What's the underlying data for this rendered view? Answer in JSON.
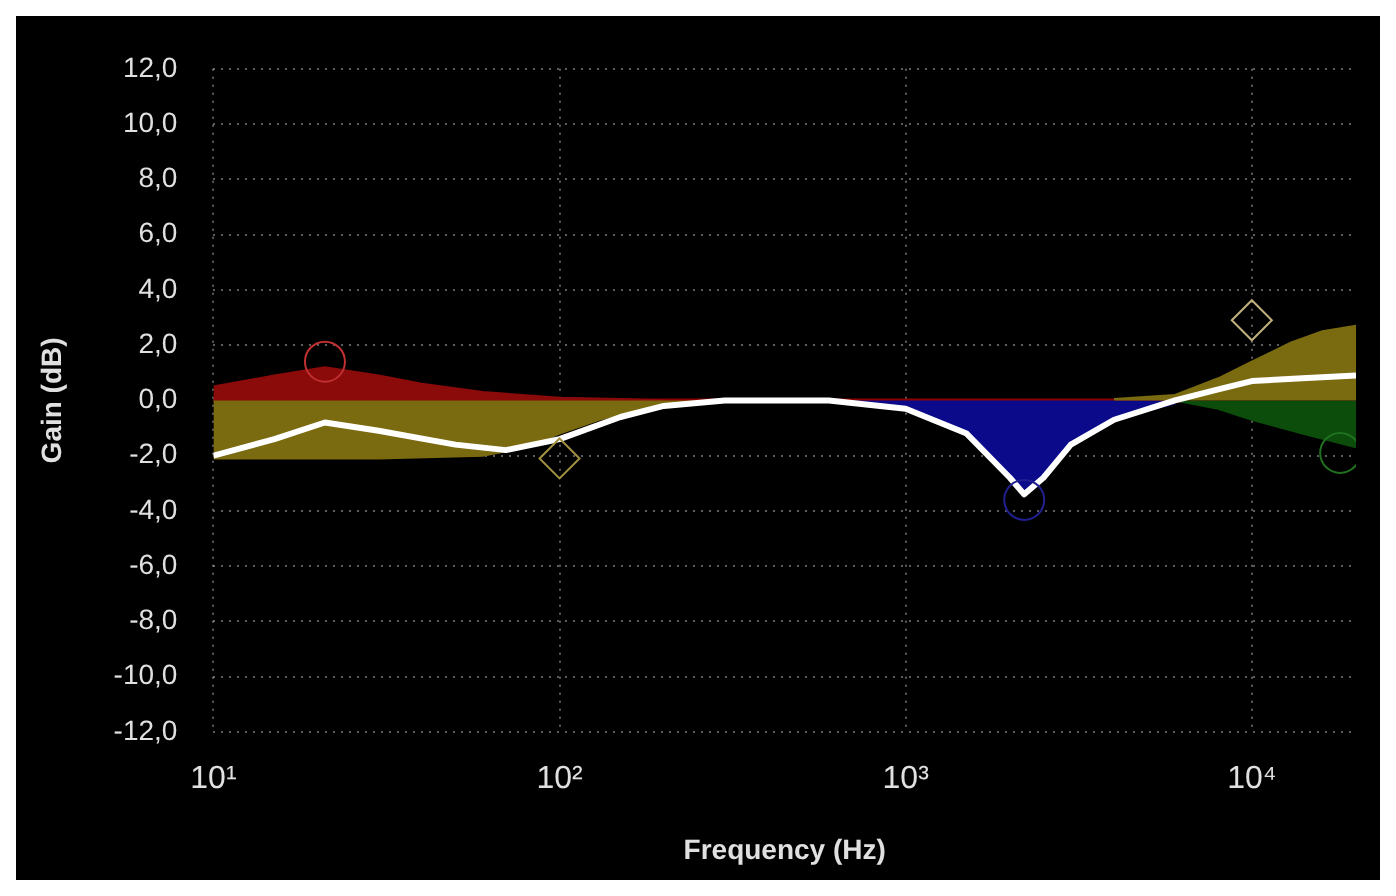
{
  "chart_data": {
    "type": "area",
    "xlabel": "Frequency (Hz)",
    "ylabel": "Gain (dB)",
    "log": "x",
    "grid": true,
    "xlim": [
      10,
      20000
    ],
    "xticks": [
      {
        "value": 10,
        "label": "10¹"
      },
      {
        "value": 100,
        "label": "10²"
      },
      {
        "value": 1000,
        "label": "10³"
      },
      {
        "value": 10000,
        "label": "10⁴"
      }
    ],
    "ylim": [
      -12,
      12
    ],
    "yticks": [
      {
        "value": -12,
        "label": "-12,0"
      },
      {
        "value": -10,
        "label": "-10,0"
      },
      {
        "value": -8,
        "label": "-8,0"
      },
      {
        "value": -6,
        "label": "-6,0"
      },
      {
        "value": -4,
        "label": "-4,0"
      },
      {
        "value": -2,
        "label": "-2,0"
      },
      {
        "value": 0,
        "label": "0,0"
      },
      {
        "value": 2,
        "label": "2,0"
      },
      {
        "value": 4,
        "label": "4,0"
      },
      {
        "value": 6,
        "label": "6,0"
      },
      {
        "value": 8,
        "label": "8,0"
      },
      {
        "value": 10,
        "label": "10,0"
      },
      {
        "value": 12,
        "label": "12,0"
      }
    ],
    "ref_lines": [
      {
        "axis": "y",
        "value": 0,
        "color": "#8b0000"
      }
    ],
    "series": [
      {
        "color": "#8b0a0a",
        "marker": "none",
        "x": [
          10,
          15,
          21,
          30,
          40,
          60,
          100,
          150,
          200
        ],
        "values": [
          0.5,
          0.9,
          1.2,
          0.9,
          0.6,
          0.3,
          0.1,
          0.05,
          0
        ]
      },
      {
        "color": "#7a6a10",
        "marker": "none",
        "x": [
          10,
          30,
          60,
          80,
          100,
          130,
          150,
          200,
          300
        ],
        "values": [
          -2.1,
          -2.1,
          -2.0,
          -1.7,
          -1.2,
          -0.7,
          -0.5,
          -0.1,
          0
        ]
      },
      {
        "color": "#0a0a8a",
        "marker": "none",
        "x": [
          600,
          1000,
          1500,
          2000,
          2200,
          2500,
          3000,
          4000,
          6000
        ],
        "values": [
          0,
          -0.3,
          -1.2,
          -2.8,
          -3.3,
          -2.8,
          -1.6,
          -0.7,
          -0.1
        ]
      },
      {
        "color": "#7a6a10",
        "marker": "none",
        "x": [
          4000,
          6000,
          8000,
          10000,
          13000,
          16000,
          20000
        ],
        "values": [
          0.05,
          0.2,
          0.8,
          1.4,
          2.1,
          2.5,
          2.7
        ]
      },
      {
        "color": "#0c4d0c",
        "marker": "none",
        "x": [
          6000,
          8000,
          10000,
          14000,
          20000
        ],
        "values": [
          0,
          -0.3,
          -0.7,
          -1.2,
          -1.7
        ]
      },
      {
        "type": "line",
        "color": "#ffffff",
        "marker": "none",
        "line_style": "solid",
        "x": [
          10,
          15,
          21,
          30,
          50,
          70,
          100,
          150,
          200,
          300,
          600,
          1000,
          1500,
          2000,
          2200,
          2500,
          3000,
          4000,
          6000,
          8000,
          10000,
          14000,
          20000
        ],
        "values": [
          -2.0,
          -1.4,
          -0.8,
          -1.1,
          -1.6,
          -1.8,
          -1.4,
          -0.6,
          -0.2,
          0,
          0,
          -0.3,
          -1.2,
          -2.8,
          -3.4,
          -2.8,
          -1.6,
          -0.7,
          0,
          0.4,
          0.7,
          0.8,
          0.9
        ]
      },
      {
        "type": "scatter",
        "color": "#c03030",
        "marker": "circle",
        "x": [
          21
        ],
        "values": [
          1.4
        ]
      },
      {
        "type": "scatter",
        "color": "#a09040",
        "marker": "diamond",
        "x": [
          100
        ],
        "values": [
          -2.1
        ]
      },
      {
        "type": "scatter",
        "color": "#202090",
        "marker": "circle",
        "x": [
          2200
        ],
        "values": [
          -3.6
        ]
      },
      {
        "type": "scatter",
        "color": "#c0b080",
        "marker": "diamond",
        "x": [
          10000
        ],
        "values": [
          2.9
        ]
      },
      {
        "type": "scatter",
        "color": "#207020",
        "marker": "circle",
        "x": [
          18000
        ],
        "values": [
          -1.9
        ]
      }
    ]
  }
}
